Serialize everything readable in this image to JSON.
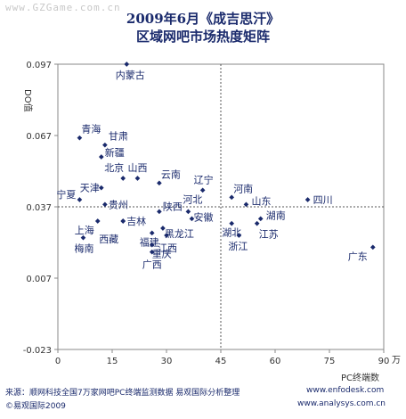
{
  "watermark": "www.GZGame.com.cn",
  "chart_data": {
    "type": "scatter",
    "title": "2009年6月《成吉思汗》",
    "subtitle": "区域网吧市场热度矩阵",
    "xlabel": "PC终端数",
    "xunit": "万",
    "ylabel": "DO值",
    "xlim": [
      0,
      90
    ],
    "ylim": [
      -0.023,
      0.097
    ],
    "xticks": [
      "0",
      "15",
      "30",
      "45",
      "60",
      "75",
      "90"
    ],
    "yticks": [
      "0.097",
      "0.067",
      "0.037",
      "0.007",
      "-0.023"
    ],
    "ref_x": 45,
    "ref_y": 0.037,
    "points": [
      {
        "name": "内蒙古",
        "x": 19,
        "y": 0.097
      },
      {
        "name": "青海",
        "x": 6,
        "y": 0.066
      },
      {
        "name": "甘肃",
        "x": 13,
        "y": 0.063
      },
      {
        "name": "新疆",
        "x": 12,
        "y": 0.058
      },
      {
        "name": "北京",
        "x": 18,
        "y": 0.049
      },
      {
        "name": "山西",
        "x": 22,
        "y": 0.049
      },
      {
        "name": "云南",
        "x": 28,
        "y": 0.047
      },
      {
        "name": "天津",
        "x": 12,
        "y": 0.045
      },
      {
        "name": "辽宁",
        "x": 40,
        "y": 0.044
      },
      {
        "name": "河南",
        "x": 48,
        "y": 0.041
      },
      {
        "name": "宁夏",
        "x": 6,
        "y": 0.04
      },
      {
        "name": "山东",
        "x": 52,
        "y": 0.038
      },
      {
        "name": "四川",
        "x": 69,
        "y": 0.04
      },
      {
        "name": "贵州",
        "x": 13,
        "y": 0.038
      },
      {
        "name": "陕西",
        "x": 28,
        "y": 0.035
      },
      {
        "name": "河北",
        "x": 36,
        "y": 0.035
      },
      {
        "name": "安徽",
        "x": 37,
        "y": 0.032
      },
      {
        "name": "湖南",
        "x": 56,
        "y": 0.032
      },
      {
        "name": "上海",
        "x": 11,
        "y": 0.031
      },
      {
        "name": "吉林",
        "x": 18,
        "y": 0.031
      },
      {
        "name": "西藏",
        "x": 18,
        "y": 0.031
      },
      {
        "name": "黑龙江",
        "x": 29,
        "y": 0.028
      },
      {
        "name": "湖北",
        "x": 48,
        "y": 0.03
      },
      {
        "name": "江西",
        "x": 30,
        "y": 0.025
      },
      {
        "name": "福建",
        "x": 26,
        "y": 0.026
      },
      {
        "name": "浙江",
        "x": 50,
        "y": 0.025
      },
      {
        "name": "江苏",
        "x": 55,
        "y": 0.03
      },
      {
        "name": "重庆",
        "x": 26,
        "y": 0.021
      },
      {
        "name": "梅南",
        "x": 7,
        "y": 0.024
      },
      {
        "name": "广西",
        "x": 26,
        "y": 0.018
      },
      {
        "name": "广东",
        "x": 87,
        "y": 0.02
      }
    ]
  },
  "footer": {
    "source": "来源：顺网科技全国7万家网吧PC终端监测数据 易观国际分析整理",
    "copyright": "©易观国际2009",
    "site1": "www.enfodesk.com",
    "site2": "www.analysys.com.cn"
  }
}
